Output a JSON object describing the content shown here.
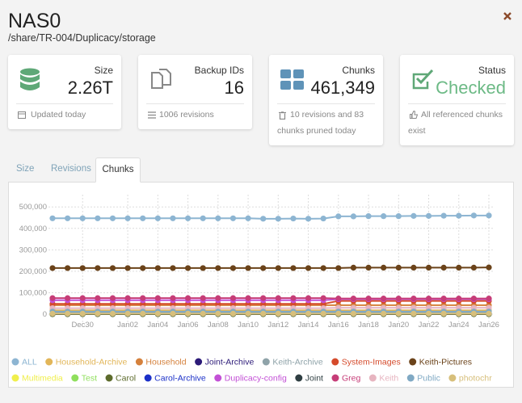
{
  "header": {
    "title": "NAS0",
    "path": "/share/TR-004/Duplicacy/storage"
  },
  "cards": [
    {
      "label": "Size",
      "value": "2.26T",
      "footer": "Updated today"
    },
    {
      "label": "Backup IDs",
      "value": "16",
      "footer": "1006 revisions"
    },
    {
      "label": "Chunks",
      "value": "461,349",
      "footer": "10 revisions and 83 chunks pruned today"
    },
    {
      "label": "Status",
      "value": "Checked",
      "footer": "All referenced chunks exist"
    }
  ],
  "tabs": [
    "Size",
    "Revisions",
    "Chunks"
  ],
  "chart_data": {
    "type": "line",
    "categories": [
      null,
      null,
      "Dec30",
      null,
      null,
      "Jan02",
      null,
      "Jan04",
      null,
      "Jan06",
      null,
      "Jan08",
      null,
      "Jan10",
      null,
      "Jan12",
      null,
      "Jan14",
      null,
      "Jan16",
      null,
      "Jan18",
      null,
      "Jan20",
      null,
      "Jan22",
      null,
      "Jan24",
      null,
      "Jan26"
    ],
    "ylim": [
      -45000,
      610000
    ],
    "yticks": [
      {
        "value": 0,
        "label": "0"
      },
      {
        "value": 100000,
        "label": "100,000"
      },
      {
        "value": 200000,
        "label": "200,000"
      },
      {
        "value": 300000,
        "label": "300,000"
      },
      {
        "value": 400000,
        "label": "400,000"
      },
      {
        "value": 500000,
        "label": "500,000"
      }
    ],
    "grid": true,
    "series": [
      {
        "name": "ALL",
        "color": "#8db5d2",
        "values": [
          447000,
          447000,
          447000,
          447000,
          447000,
          447000,
          447000,
          447000,
          447000,
          447000,
          447000,
          447000,
          447000,
          447000,
          445000,
          445000,
          446000,
          445000,
          446000,
          456000,
          456000,
          457000,
          457000,
          457000,
          458000,
          458000,
          459000,
          459000,
          460000,
          460000
        ]
      },
      {
        "name": "Household-Archive",
        "color": "#e2b659",
        "values": [
          18000,
          18000,
          18000,
          18000,
          18000,
          18000,
          18000,
          18000,
          18000,
          18000,
          18000,
          18000,
          18000,
          18000,
          18000,
          18000,
          18000,
          18000,
          18000,
          18000,
          18000,
          18000,
          18000,
          18000,
          18000,
          18000,
          18000,
          18000,
          18000,
          18000
        ]
      },
      {
        "name": "Household",
        "color": "#d5813c",
        "values": [
          42000,
          42000,
          42000,
          42000,
          42000,
          42000,
          42000,
          42000,
          42000,
          42000,
          42000,
          42000,
          42000,
          42000,
          42000,
          42000,
          42000,
          42000,
          42000,
          42000,
          42000,
          42000,
          42000,
          42000,
          42000,
          42000,
          42000,
          42000,
          42000,
          42000
        ]
      },
      {
        "name": "Joint-Archive",
        "color": "#2c1a78",
        "values": [
          1000,
          1000,
          1000,
          1000,
          1000,
          1000,
          1000,
          1000,
          1000,
          1000,
          1000,
          1000,
          1000,
          1000,
          1000,
          1000,
          1000,
          1000,
          1000,
          1000,
          1000,
          1000,
          1000,
          1000,
          1000,
          1000,
          1000,
          1000,
          1000,
          1000
        ]
      },
      {
        "name": "Keith-Archive",
        "color": "#8fa3a9",
        "values": [
          8000,
          8000,
          8000,
          8000,
          8000,
          8000,
          8000,
          8000,
          8000,
          8000,
          8000,
          8000,
          8000,
          8000,
          8000,
          8000,
          8000,
          8000,
          8000,
          8000,
          8000,
          8000,
          8000,
          8000,
          8000,
          8000,
          8000,
          8000,
          8000,
          8000
        ]
      },
      {
        "name": "System-Images",
        "color": "#d54a2b",
        "values": [
          48000,
          48000,
          48000,
          48000,
          48000,
          48000,
          48000,
          48000,
          48000,
          48000,
          48000,
          48000,
          48000,
          48000,
          48000,
          48000,
          48000,
          48000,
          48000,
          62000,
          62000,
          62000,
          62000,
          62000,
          62000,
          62000,
          62000,
          62000,
          62000,
          62000
        ]
      },
      {
        "name": "Keith-Pictures",
        "color": "#6b431a",
        "values": [
          215000,
          215000,
          215000,
          215000,
          215000,
          215000,
          215000,
          215000,
          215000,
          215000,
          215000,
          215000,
          215000,
          215000,
          215000,
          215000,
          215000,
          215000,
          215000,
          215000,
          217000,
          217000,
          217000,
          217000,
          217000,
          217000,
          217000,
          217000,
          217000,
          218000
        ]
      },
      {
        "name": "Multimedia",
        "color": "#f0ef4c",
        "values": [
          500,
          500,
          500,
          500,
          500,
          500,
          500,
          500,
          500,
          500,
          500,
          500,
          500,
          500,
          500,
          500,
          500,
          500,
          500,
          500,
          500,
          500,
          500,
          500,
          500,
          500,
          500,
          500,
          500,
          500
        ]
      },
      {
        "name": "Test",
        "color": "#8fdf5c",
        "values": [
          300,
          300,
          300,
          300,
          300,
          300,
          300,
          300,
          300,
          300,
          300,
          300,
          300,
          300,
          300,
          300,
          300,
          300,
          300,
          300,
          300,
          300,
          300,
          300,
          300,
          300,
          300,
          300,
          300,
          300
        ]
      },
      {
        "name": "Carol",
        "color": "#5d6b2c",
        "values": [
          200,
          200,
          200,
          200,
          200,
          200,
          200,
          200,
          200,
          200,
          200,
          200,
          200,
          200,
          200,
          200,
          200,
          200,
          200,
          200,
          200,
          200,
          200,
          200,
          200,
          200,
          200,
          200,
          200,
          200
        ]
      },
      {
        "name": "Carol-Archive",
        "color": "#1b30c8",
        "values": [
          2000,
          2000,
          2000,
          2000,
          2000,
          2000,
          2000,
          2000,
          2000,
          2000,
          2000,
          2000,
          2000,
          2000,
          2000,
          2000,
          2000,
          2000,
          2000,
          2000,
          2000,
          2000,
          2000,
          2000,
          2000,
          2000,
          2000,
          2000,
          2000,
          2000
        ]
      },
      {
        "name": "Duplicacy-config",
        "color": "#c351d6",
        "values": [
          65000,
          65000,
          65000,
          65000,
          65000,
          65000,
          65000,
          65000,
          65000,
          65000,
          65000,
          65000,
          65000,
          65000,
          65000,
          65000,
          65000,
          65000,
          65000,
          70000,
          70000,
          70000,
          70000,
          70000,
          70000,
          70000,
          70000,
          70000,
          70000,
          70000
        ]
      },
      {
        "name": "Joint",
        "color": "#2f3e42",
        "values": [
          1500,
          1500,
          1500,
          1500,
          1500,
          1500,
          1500,
          1500,
          1500,
          1500,
          1500,
          1500,
          1500,
          1500,
          1500,
          1500,
          1500,
          1500,
          1500,
          1500,
          1500,
          1500,
          1500,
          1500,
          1500,
          1500,
          1500,
          1500,
          1500,
          1500
        ]
      },
      {
        "name": "Greg",
        "color": "#c63d78",
        "values": [
          75000,
          75000,
          75000,
          75000,
          75000,
          75000,
          75000,
          75000,
          75000,
          75000,
          75000,
          75000,
          75000,
          75000,
          75000,
          75000,
          75000,
          75000,
          75000,
          73000,
          73000,
          73000,
          73000,
          73000,
          73000,
          73000,
          73000,
          73000,
          73000,
          73000
        ]
      },
      {
        "name": "Keith",
        "color": "#e7b5c0",
        "values": [
          28000,
          28000,
          28000,
          28000,
          28000,
          28000,
          28000,
          28000,
          28000,
          28000,
          28000,
          28000,
          28000,
          28000,
          28000,
          28000,
          28000,
          28000,
          28000,
          30000,
          30000,
          30000,
          30000,
          30000,
          30000,
          30000,
          30000,
          30000,
          30000,
          30000
        ]
      },
      {
        "name": "Public",
        "color": "#80a9c4",
        "values": [
          12000,
          12000,
          12000,
          12000,
          12000,
          12000,
          12000,
          12000,
          12000,
          12000,
          12000,
          12000,
          12000,
          12000,
          12000,
          12000,
          12000,
          12000,
          12000,
          12000,
          12000,
          12000,
          12000,
          12000,
          12000,
          12000,
          12000,
          12000,
          12000,
          12000
        ]
      },
      {
        "name": "photochr",
        "color": "#d7bf7b",
        "values": [
          2500,
          2500,
          2500,
          2500,
          2500,
          2500,
          2500,
          2500,
          2500,
          2500,
          2500,
          2500,
          2500,
          2500,
          2500,
          2500,
          2500,
          2500,
          2500,
          2500,
          2500,
          2500,
          2500,
          2500,
          2500,
          2500,
          2500,
          2500,
          2500,
          2500
        ]
      }
    ]
  }
}
